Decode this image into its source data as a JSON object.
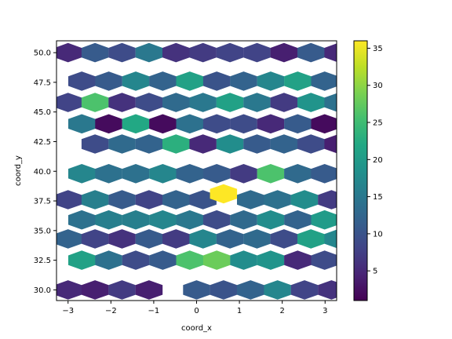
{
  "chart_data": {
    "type": "hexbin",
    "xlabel": "coord_x",
    "ylabel": "coord_y",
    "xlim": [
      -3.27,
      3.27
    ],
    "ylim": [
      29.1,
      51.0
    ],
    "xticks": [
      -3,
      -2,
      -1,
      0,
      1,
      2,
      3
    ],
    "yticks": [
      30.0,
      32.5,
      35.0,
      37.5,
      40.0,
      42.5,
      45.0,
      47.5,
      50.0
    ],
    "xtick_labels": [
      "−3",
      "−2",
      "−1",
      "0",
      "1",
      "2",
      "3"
    ],
    "ytick_labels": [
      "30.0",
      "32.5",
      "35.0",
      "37.5",
      "40.0",
      "42.5",
      "45.0",
      "47.5",
      "50.0"
    ],
    "colormap": "viridis",
    "color_range": [
      1,
      36
    ],
    "colorbar_ticks": [
      5,
      10,
      15,
      20,
      25,
      30,
      35
    ],
    "colorbar_tick_labels": [
      "5",
      "10",
      "15",
      "20",
      "25",
      "30",
      "35"
    ],
    "grid": false,
    "hex_size_data": [
      0.316,
      1.63
    ],
    "cells": [
      {
        "x": -3.0,
        "y": 30.0,
        "count": 5
      },
      {
        "x": -2.37,
        "y": 30.0,
        "count": 4
      },
      {
        "x": -1.74,
        "y": 30.0,
        "count": 7
      },
      {
        "x": -1.11,
        "y": 30.0,
        "count": 4
      },
      {
        "x": 0.0,
        "y": 30.0,
        "count": 11
      },
      {
        "x": 0.63,
        "y": 30.0,
        "count": 10
      },
      {
        "x": 1.26,
        "y": 30.0,
        "count": 12
      },
      {
        "x": 1.89,
        "y": 30.0,
        "count": 17
      },
      {
        "x": 2.52,
        "y": 30.0,
        "count": 8
      },
      {
        "x": 3.15,
        "y": 30.0,
        "count": 6
      },
      {
        "x": -2.68,
        "y": 32.5,
        "count": 21
      },
      {
        "x": -2.05,
        "y": 32.5,
        "count": 14
      },
      {
        "x": -1.42,
        "y": 32.5,
        "count": 9
      },
      {
        "x": -0.79,
        "y": 32.5,
        "count": 11
      },
      {
        "x": -0.16,
        "y": 32.5,
        "count": 26
      },
      {
        "x": 0.47,
        "y": 32.5,
        "count": 28
      },
      {
        "x": 1.1,
        "y": 32.5,
        "count": 18
      },
      {
        "x": 1.73,
        "y": 32.5,
        "count": 19
      },
      {
        "x": 2.36,
        "y": 32.5,
        "count": 5
      },
      {
        "x": 2.99,
        "y": 32.5,
        "count": 9
      },
      {
        "x": -3.0,
        "y": 34.3,
        "count": 12
      },
      {
        "x": -2.37,
        "y": 34.3,
        "count": 8
      },
      {
        "x": -1.74,
        "y": 34.3,
        "count": 6
      },
      {
        "x": -1.11,
        "y": 34.3,
        "count": 11
      },
      {
        "x": -0.48,
        "y": 34.3,
        "count": 7
      },
      {
        "x": 0.15,
        "y": 34.3,
        "count": 17
      },
      {
        "x": 0.78,
        "y": 34.3,
        "count": 12
      },
      {
        "x": 1.41,
        "y": 34.3,
        "count": 13
      },
      {
        "x": 2.04,
        "y": 34.3,
        "count": 9
      },
      {
        "x": 2.67,
        "y": 34.3,
        "count": 21
      },
      {
        "x": 3.3,
        "y": 34.3,
        "count": 17
      },
      {
        "x": -2.68,
        "y": 35.9,
        "count": 14
      },
      {
        "x": -2.05,
        "y": 35.9,
        "count": 16
      },
      {
        "x": -1.42,
        "y": 35.9,
        "count": 16
      },
      {
        "x": -0.79,
        "y": 35.9,
        "count": 17
      },
      {
        "x": -0.16,
        "y": 35.9,
        "count": 15
      },
      {
        "x": 0.47,
        "y": 35.9,
        "count": 9
      },
      {
        "x": 1.1,
        "y": 35.9,
        "count": 13
      },
      {
        "x": 1.73,
        "y": 35.9,
        "count": 18
      },
      {
        "x": 2.36,
        "y": 35.9,
        "count": 12
      },
      {
        "x": 2.99,
        "y": 35.9,
        "count": 20
      },
      {
        "x": -3.0,
        "y": 37.6,
        "count": 8
      },
      {
        "x": -2.37,
        "y": 37.6,
        "count": 16
      },
      {
        "x": -1.74,
        "y": 37.6,
        "count": 11
      },
      {
        "x": -1.11,
        "y": 37.6,
        "count": 8
      },
      {
        "x": -0.48,
        "y": 37.6,
        "count": 12
      },
      {
        "x": 0.15,
        "y": 37.6,
        "count": 10
      },
      {
        "x": 0.63,
        "y": 38.1,
        "count": 36
      },
      {
        "x": 1.26,
        "y": 37.6,
        "count": 13
      },
      {
        "x": 1.89,
        "y": 37.6,
        "count": 14
      },
      {
        "x": 2.52,
        "y": 37.6,
        "count": 18
      },
      {
        "x": 3.15,
        "y": 37.6,
        "count": 7
      },
      {
        "x": -2.68,
        "y": 39.8,
        "count": 17
      },
      {
        "x": -2.05,
        "y": 39.8,
        "count": 14
      },
      {
        "x": -1.42,
        "y": 39.8,
        "count": 14
      },
      {
        "x": -0.79,
        "y": 39.8,
        "count": 17
      },
      {
        "x": -0.16,
        "y": 39.8,
        "count": 12
      },
      {
        "x": 0.47,
        "y": 39.8,
        "count": 11
      },
      {
        "x": 1.1,
        "y": 39.8,
        "count": 7
      },
      {
        "x": 1.73,
        "y": 39.8,
        "count": 26
      },
      {
        "x": 2.36,
        "y": 39.8,
        "count": 13
      },
      {
        "x": 2.99,
        "y": 39.8,
        "count": 11
      },
      {
        "x": -2.37,
        "y": 42.3,
        "count": 9
      },
      {
        "x": -1.74,
        "y": 42.3,
        "count": 13
      },
      {
        "x": -1.11,
        "y": 42.3,
        "count": 12
      },
      {
        "x": -0.48,
        "y": 42.3,
        "count": 23
      },
      {
        "x": 0.15,
        "y": 42.3,
        "count": 5
      },
      {
        "x": 0.78,
        "y": 42.3,
        "count": 18
      },
      {
        "x": 1.41,
        "y": 42.3,
        "count": 11
      },
      {
        "x": 2.04,
        "y": 42.3,
        "count": 12
      },
      {
        "x": 2.67,
        "y": 42.3,
        "count": 9
      },
      {
        "x": 3.3,
        "y": 42.3,
        "count": 4
      },
      {
        "x": -2.68,
        "y": 44.0,
        "count": 15
      },
      {
        "x": -2.05,
        "y": 44.0,
        "count": 2
      },
      {
        "x": -1.42,
        "y": 44.0,
        "count": 22
      },
      {
        "x": -0.79,
        "y": 44.0,
        "count": 2
      },
      {
        "x": -0.16,
        "y": 44.0,
        "count": 14
      },
      {
        "x": 0.47,
        "y": 44.0,
        "count": 9
      },
      {
        "x": 1.1,
        "y": 44.0,
        "count": 9
      },
      {
        "x": 1.73,
        "y": 44.0,
        "count": 5
      },
      {
        "x": 2.36,
        "y": 44.0,
        "count": 11
      },
      {
        "x": 2.99,
        "y": 44.0,
        "count": 2
      },
      {
        "x": -3.0,
        "y": 45.8,
        "count": 8
      },
      {
        "x": -2.37,
        "y": 45.8,
        "count": 26
      },
      {
        "x": -1.74,
        "y": 45.8,
        "count": 6
      },
      {
        "x": -1.11,
        "y": 45.8,
        "count": 9
      },
      {
        "x": -0.48,
        "y": 45.8,
        "count": 13
      },
      {
        "x": 0.15,
        "y": 45.8,
        "count": 15
      },
      {
        "x": 0.78,
        "y": 45.8,
        "count": 21
      },
      {
        "x": 1.41,
        "y": 45.8,
        "count": 15
      },
      {
        "x": 2.04,
        "y": 45.8,
        "count": 7
      },
      {
        "x": 2.67,
        "y": 45.8,
        "count": 19
      },
      {
        "x": 3.3,
        "y": 45.8,
        "count": 14
      },
      {
        "x": -2.68,
        "y": 47.6,
        "count": 9
      },
      {
        "x": -2.05,
        "y": 47.6,
        "count": 11
      },
      {
        "x": -1.42,
        "y": 47.6,
        "count": 17
      },
      {
        "x": -0.79,
        "y": 47.6,
        "count": 12
      },
      {
        "x": -0.16,
        "y": 47.6,
        "count": 21
      },
      {
        "x": 0.47,
        "y": 47.6,
        "count": 10
      },
      {
        "x": 1.1,
        "y": 47.6,
        "count": 12
      },
      {
        "x": 1.73,
        "y": 47.6,
        "count": 17
      },
      {
        "x": 2.36,
        "y": 47.6,
        "count": 21
      },
      {
        "x": 2.99,
        "y": 47.6,
        "count": 12
      },
      {
        "x": -3.0,
        "y": 50.0,
        "count": 5
      },
      {
        "x": -2.37,
        "y": 50.0,
        "count": 11
      },
      {
        "x": -1.74,
        "y": 50.0,
        "count": 9
      },
      {
        "x": -1.11,
        "y": 50.0,
        "count": 15
      },
      {
        "x": -0.48,
        "y": 50.0,
        "count": 6
      },
      {
        "x": 0.15,
        "y": 50.0,
        "count": 7
      },
      {
        "x": 0.78,
        "y": 50.0,
        "count": 8
      },
      {
        "x": 1.41,
        "y": 50.0,
        "count": 8
      },
      {
        "x": 2.04,
        "y": 50.0,
        "count": 4
      },
      {
        "x": 2.67,
        "y": 50.0,
        "count": 11
      },
      {
        "x": 3.3,
        "y": 50.0,
        "count": 5
      }
    ]
  }
}
